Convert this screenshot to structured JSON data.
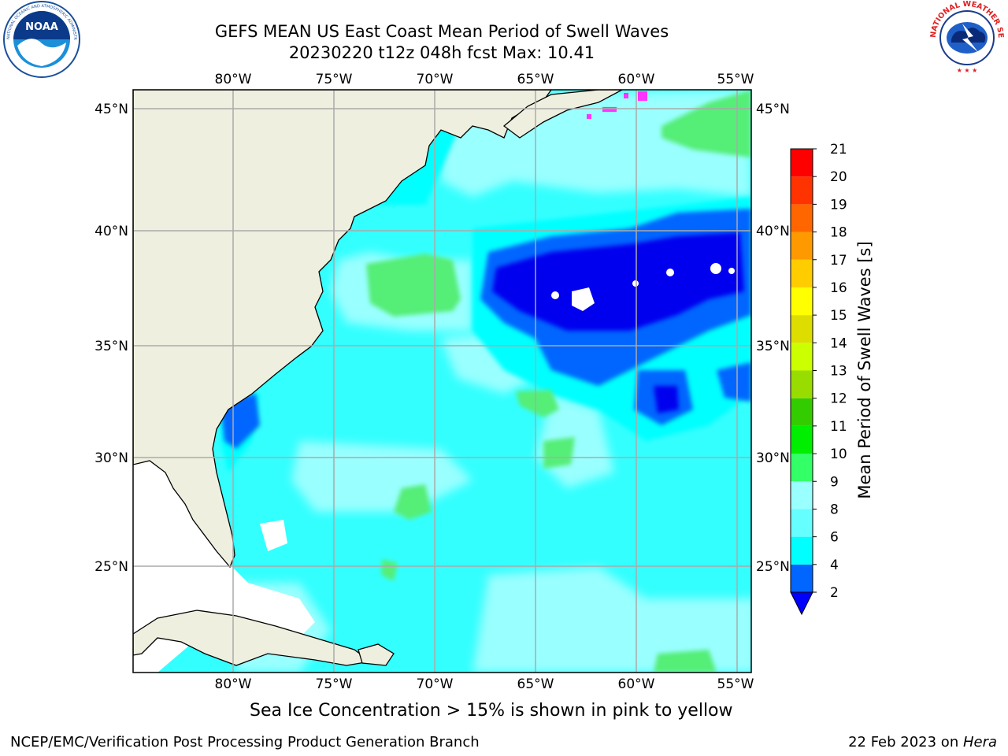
{
  "header": {
    "title_line1": "GEFS MEAN US East Coast Mean Period of Swell Waves",
    "title_line2": "20230220 t12z 048h fcst   Max: 10.41"
  },
  "logos": {
    "left": "noaa-logo",
    "right": "national-weather-service-logo",
    "left_text": "NATIONAL OCEANIC AND ATMOSPHERIC ADMINISTRATION · U.S. DEPARTMENT OF COMMERCE",
    "left_mark": "NOAA",
    "right_text": "NATIONAL WEATHER SERVICE"
  },
  "map": {
    "lon_labels": [
      "80°W",
      "75°W",
      "70°W",
      "65°W",
      "60°W",
      "55°W"
    ],
    "lat_labels": [
      "45°N",
      "40°N",
      "35°N",
      "30°N",
      "25°N"
    ],
    "lon_range": [
      -85,
      -54.4
    ],
    "lat_range": [
      20.4,
      46
    ],
    "land_color": "#efefdf",
    "grid": true
  },
  "colorbar": {
    "title": "Mean Period of Swell Waves [s]",
    "ticks": [
      "2",
      "4",
      "6",
      "8",
      "9",
      "10",
      "11",
      "12",
      "13",
      "14",
      "15",
      "16",
      "17",
      "18",
      "19",
      "20",
      "21"
    ],
    "colors": [
      "#0000ff",
      "#0066ff",
      "#00ffff",
      "#66ffff",
      "#99ffff",
      "#33ff66",
      "#00ee00",
      "#33cc00",
      "#99dd00",
      "#ccff00",
      "#dddd00",
      "#ffff00",
      "#ffcc00",
      "#ff9900",
      "#ff6600",
      "#ff3300",
      "#ff0000"
    ]
  },
  "chart_data": {
    "type": "heatmap",
    "title": "GEFS MEAN US East Coast Mean Period of Swell Waves",
    "subtitle": "20230220 t12z 048h fcst   Max: 10.41",
    "variable": "Mean Period of Swell Waves [s]",
    "max": 10.41,
    "color_levels": [
      2,
      4,
      6,
      8,
      9,
      10,
      11,
      12,
      13,
      14,
      15,
      16,
      17,
      18,
      19,
      20,
      21
    ],
    "x_ticks": [
      "80°W",
      "75°W",
      "70°W",
      "65°W",
      "60°W",
      "55°W"
    ],
    "y_ticks": [
      "45°N",
      "40°N",
      "35°N",
      "30°N",
      "25°N"
    ]
  },
  "footer": {
    "note": "Sea Ice Concentration > 15% is shown in pink to yellow",
    "left": "NCEP/EMC/Verification Post Processing Product Generation Branch",
    "right_date": "22 Feb 2023 on ",
    "right_host": "Hera"
  }
}
